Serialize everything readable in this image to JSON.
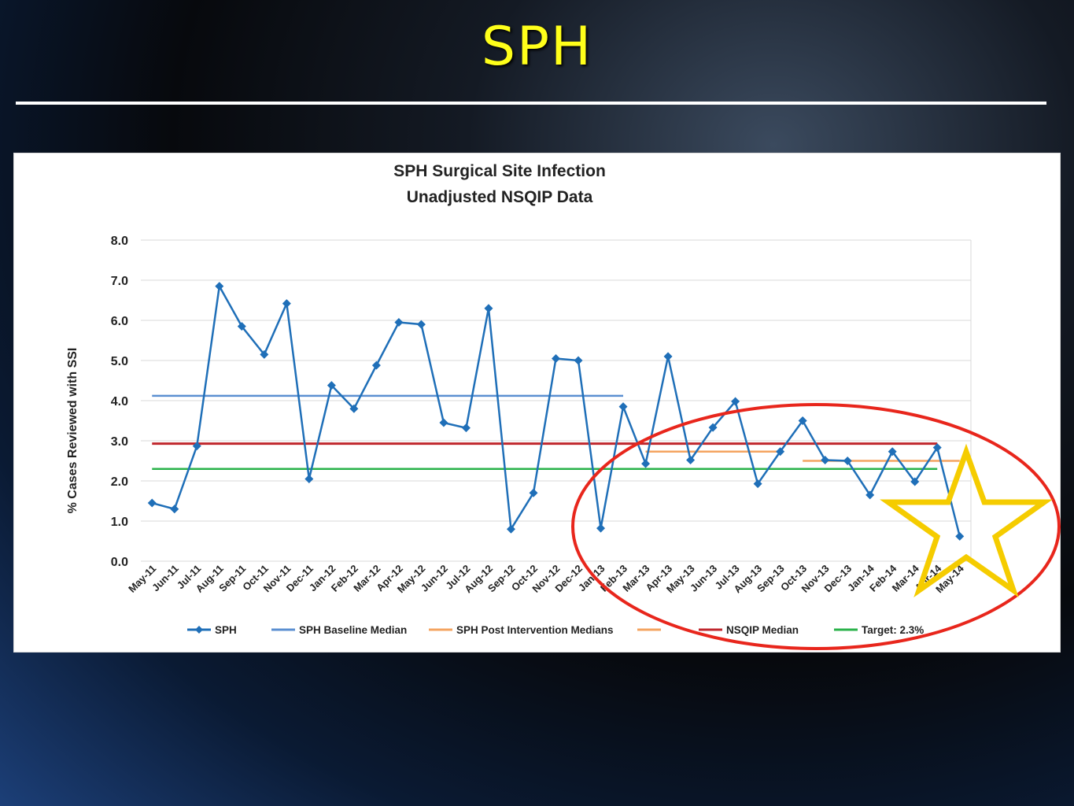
{
  "slide": {
    "title": "SPH"
  },
  "colors": {
    "title": "#ffff1a",
    "sph": "#1f6fb8",
    "baseline": "#5b8fd1",
    "post": "#f4a460",
    "nsqip": "#c0272d",
    "target": "#2ab24a",
    "ellipse": "#e8261c",
    "star": "#f5cc00"
  },
  "chart_data": {
    "type": "line",
    "title": "SPH Surgical Site Infection",
    "subtitle": "Unadjusted NSQIP Data",
    "xlabel": "",
    "ylabel": "% Cases Reviewed with SSI",
    "ylim": [
      0,
      8
    ],
    "yticks": [
      "0.0",
      "1.0",
      "2.0",
      "3.0",
      "4.0",
      "5.0",
      "6.0",
      "7.0",
      "8.0"
    ],
    "grid": "horizontal",
    "legend_position": "bottom",
    "categories": [
      "May-11",
      "Jun-11",
      "Jul-11",
      "Aug-11",
      "Sep-11",
      "Oct-11",
      "Nov-11",
      "Dec-11",
      "Jan-12",
      "Feb-12",
      "Mar-12",
      "Apr-12",
      "May-12",
      "Jun-12",
      "Jul-12",
      "Aug-12",
      "Sep-12",
      "Oct-12",
      "Nov-12",
      "Dec-12",
      "Jan-13",
      "Feb-13",
      "Mar-13",
      "Apr-13",
      "May-13",
      "Jun-13",
      "Jul-13",
      "Aug-13",
      "Sep-13",
      "Oct-13",
      "Nov-13",
      "Dec-13",
      "Jan-14",
      "Feb-14",
      "Mar-14",
      "Apr-14",
      "May-14"
    ],
    "series": [
      {
        "name": "SPH",
        "kind": "line-marker",
        "values": [
          1.45,
          1.3,
          2.87,
          6.85,
          5.85,
          5.15,
          6.42,
          2.05,
          4.38,
          3.8,
          4.88,
          5.95,
          5.9,
          3.45,
          3.32,
          6.3,
          0.8,
          1.7,
          5.05,
          5.0,
          0.82,
          3.85,
          2.43,
          5.1,
          2.52,
          3.33,
          3.98,
          1.93,
          2.73,
          3.5,
          2.52,
          2.5,
          1.65,
          2.73,
          1.98,
          2.83,
          0.62
        ]
      },
      {
        "name": "SPH Baseline Median",
        "kind": "hline",
        "value": 4.12,
        "from": "May-11",
        "to": "Feb-13"
      },
      {
        "name": "SPH Post Intervention Medians",
        "kind": "hline",
        "value": 2.73,
        "from": "Mar-13",
        "to": "Sep-13"
      },
      {
        "name": "",
        "kind": "hline",
        "value": 2.5,
        "from": "Oct-13",
        "to": "May-14"
      },
      {
        "name": "NSQIP Median",
        "kind": "hline",
        "value": 2.93,
        "from": "May-11",
        "to": "Apr-14"
      },
      {
        "name": "Target: 2.3%",
        "kind": "hline",
        "value": 2.3,
        "from": "May-11",
        "to": "Apr-14"
      }
    ],
    "legend": [
      "SPH",
      "SPH Baseline Median",
      "SPH Post Intervention Medians",
      "",
      "NSQIP Median",
      "Target: 2.3%"
    ],
    "annotations": [
      "red-ellipse-highlight",
      "yellow-star-outline"
    ]
  }
}
